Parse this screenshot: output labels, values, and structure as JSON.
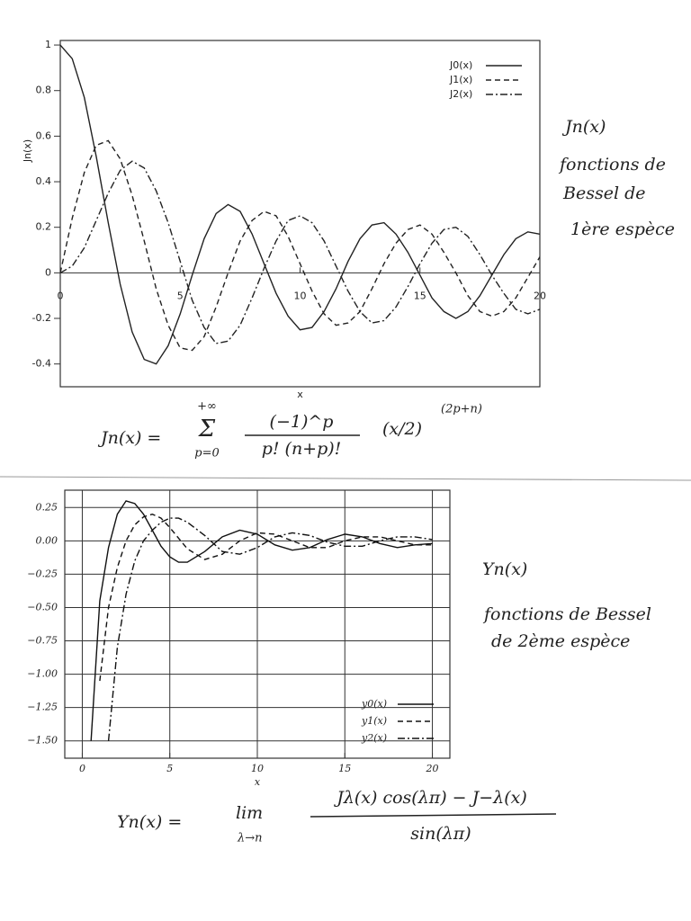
{
  "chart_data": [
    {
      "type": "line",
      "xlabel": "x",
      "ylabel": "Jn(x)",
      "x": [
        0,
        0.5,
        1,
        1.5,
        2,
        2.5,
        3,
        3.5,
        4,
        4.5,
        5,
        5.5,
        6,
        6.5,
        7,
        7.5,
        8,
        8.5,
        9,
        9.5,
        10,
        10.5,
        11,
        11.5,
        12,
        12.5,
        13,
        13.5,
        14,
        14.5,
        15,
        15.5,
        16,
        16.5,
        17,
        17.5,
        18,
        18.5,
        19,
        19.5,
        20
      ],
      "series": [
        {
          "name": "J0(x)",
          "color": "#222222",
          "linestyle": "solid",
          "values": [
            1,
            0.94,
            0.77,
            0.51,
            0.22,
            -0.05,
            -0.26,
            -0.38,
            -0.4,
            -0.32,
            -0.18,
            -0.01,
            0.15,
            0.26,
            0.3,
            0.27,
            0.17,
            0.04,
            -0.09,
            -0.19,
            -0.25,
            -0.24,
            -0.17,
            -0.07,
            0.05,
            0.15,
            0.21,
            0.22,
            0.17,
            0.09,
            -0.01,
            -0.11,
            -0.17,
            -0.2,
            -0.17,
            -0.1,
            -0.01,
            0.08,
            0.15,
            0.18,
            0.17
          ]
        },
        {
          "name": "J1(x)",
          "color": "#222222",
          "linestyle": "dashed",
          "values": [
            0,
            0.24,
            0.44,
            0.56,
            0.58,
            0.5,
            0.34,
            0.14,
            -0.07,
            -0.23,
            -0.33,
            -0.34,
            -0.28,
            -0.15,
            0,
            0.14,
            0.23,
            0.27,
            0.25,
            0.16,
            0.04,
            -0.08,
            -0.18,
            -0.23,
            -0.22,
            -0.17,
            -0.07,
            0.04,
            0.13,
            0.19,
            0.21,
            0.17,
            0.09,
            0,
            -0.1,
            -0.17,
            -0.19,
            -0.17,
            -0.11,
            -0.02,
            0.07
          ]
        },
        {
          "name": "J2(x)",
          "color": "#222222",
          "linestyle": "dashdot",
          "values": [
            0,
            0.03,
            0.11,
            0.23,
            0.35,
            0.45,
            0.49,
            0.46,
            0.36,
            0.22,
            0.05,
            -0.12,
            -0.24,
            -0.31,
            -0.3,
            -0.23,
            -0.11,
            0.02,
            0.14,
            0.23,
            0.25,
            0.22,
            0.14,
            0.03,
            -0.08,
            -0.17,
            -0.22,
            -0.21,
            -0.15,
            -0.06,
            0.04,
            0.13,
            0.19,
            0.2,
            0.16,
            0.08,
            -0.01,
            -0.09,
            -0.16,
            -0.18,
            -0.16
          ]
        }
      ],
      "xlim": [
        0,
        20
      ],
      "xticks": [
        0,
        5,
        10,
        15,
        20
      ],
      "ylim": [
        -0.5,
        1.02
      ],
      "yticks": [
        -0.4,
        -0.2,
        0,
        0.2,
        0.4,
        0.6,
        0.8,
        1
      ],
      "grid": false,
      "xaxis": "zero",
      "legend": "upper right"
    },
    {
      "type": "line",
      "xlabel": "x",
      "x": [
        0.5,
        1,
        1.5,
        2,
        2.5,
        3,
        3.5,
        4,
        4.5,
        5,
        5.5,
        6,
        7,
        8,
        9,
        10,
        11,
        12,
        13,
        14,
        15,
        16,
        17,
        18,
        19,
        20
      ],
      "series": [
        {
          "name": "y0(x)",
          "color": "#111111",
          "linestyle": "solid",
          "values": [
            -1.5,
            -0.45,
            -0.05,
            0.2,
            0.3,
            0.28,
            0.2,
            0.08,
            -0.04,
            -0.12,
            -0.16,
            -0.16,
            -0.08,
            0.03,
            0.08,
            0.05,
            -0.03,
            -0.07,
            -0.05,
            0.01,
            0.05,
            0.03,
            -0.02,
            -0.05,
            -0.03,
            -0.02
          ]
        },
        {
          "name": "y1(x)",
          "color": "#111111",
          "linestyle": "dashed",
          "values": [
            null,
            -1.05,
            -0.5,
            -0.2,
            0,
            0.12,
            0.18,
            0.2,
            0.17,
            0.1,
            0.02,
            -0.06,
            -0.14,
            -0.1,
            0,
            0.06,
            0.05,
            0,
            -0.05,
            -0.05,
            0,
            0.03,
            0.03,
            0,
            -0.03,
            -0.03
          ]
        },
        {
          "name": "y2(x)",
          "color": "#111111",
          "linestyle": "dashdot",
          "values": [
            null,
            null,
            -1.5,
            -0.8,
            -0.4,
            -0.15,
            0,
            0.08,
            0.14,
            0.17,
            0.17,
            0.14,
            0.04,
            -0.08,
            -0.1,
            -0.05,
            0.03,
            0.06,
            0.04,
            -0.01,
            -0.04,
            -0.04,
            0,
            0.03,
            0.03,
            0.01
          ]
        }
      ],
      "xlim": [
        -1,
        21
      ],
      "xticks": [
        0,
        5,
        10,
        15,
        20
      ],
      "ylim": [
        -1.63,
        0.38
      ],
      "yticks": [
        {
          "value": -1.5,
          "label": "−1.50"
        },
        {
          "value": -1.25,
          "label": "−1.25"
        },
        {
          "value": -1,
          "label": "−1.00"
        },
        {
          "value": -0.75,
          "label": "−0.75"
        },
        {
          "value": -0.5,
          "label": "−0.50"
        },
        {
          "value": -0.25,
          "label": "−0.25"
        },
        {
          "value": 0,
          "label": "0.00"
        },
        0.25
      ],
      "grid": true,
      "xaxis": "bottom",
      "legend": "lower right"
    }
  ],
  "notes_first": [
    "Jn(x)",
    "fonctions de",
    "Bessel de",
    "1ère espèce"
  ],
  "formula_first": {
    "lhs": "Jn(x) =",
    "sum_top": "+∞",
    "sum": "Σ",
    "sum_bottom": "p=0",
    "numerator": "(−1)^p",
    "denominator": "p! (n+p)!",
    "factor": "(x/2)",
    "exponent": "(2p+n)"
  },
  "notes_second": [
    "Yn(x)",
    "fonctions de Bessel",
    "de 2ème espèce"
  ],
  "formula_second": {
    "lhs": "Yn(x) =",
    "lim": "lim",
    "lim_sub": "λ→n",
    "numerator": "Jλ(x) cos(λπ) − J−λ(x)",
    "denominator": "sin(λπ)"
  }
}
